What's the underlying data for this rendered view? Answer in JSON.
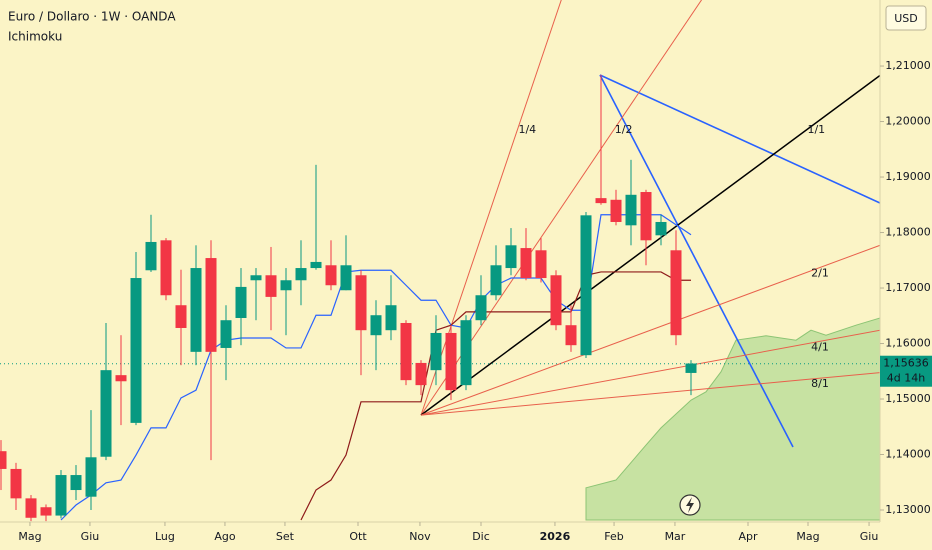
{
  "chart_data": {
    "type": "candlestick",
    "title": "Euro / Dollaro · 1W · OANDA",
    "indicator": "Ichimoku",
    "currency": "USD",
    "colors": {
      "up": "#089981",
      "down": "#f23645",
      "tenkan": "#2962ff",
      "kijun": "#8e1a1a",
      "cloud": "#a5d58a"
    },
    "xlim": [
      -0.067,
      58.6
    ],
    "ylim": [
      1.1282,
      1.2219
    ],
    "xticks": [
      {
        "value": 1.93,
        "label": "Mag"
      },
      {
        "value": 5.93,
        "label": "Giu"
      },
      {
        "value": 10.93,
        "label": "Lug"
      },
      {
        "value": 14.93,
        "label": "Ago"
      },
      {
        "value": 18.93,
        "label": "Set"
      },
      {
        "value": 23.8,
        "label": "Ott"
      },
      {
        "value": 27.93,
        "label": "Nov"
      },
      {
        "value": 32,
        "label": "Dic"
      },
      {
        "value": 36.93,
        "label": "2026"
      },
      {
        "value": 40.87,
        "label": "Feb"
      },
      {
        "value": 44.93,
        "label": "Mar"
      },
      {
        "value": 49.8,
        "label": "Apr"
      },
      {
        "value": 53.8,
        "label": "Mag"
      },
      {
        "value": 57.87,
        "label": "Giu"
      }
    ],
    "yticks": [
      {
        "value": 1.13,
        "label": "1,13000"
      },
      {
        "value": 1.14,
        "label": "1,14000"
      },
      {
        "value": 1.15,
        "label": "1,15000"
      },
      {
        "value": 1.16,
        "label": "1,16000"
      },
      {
        "value": 1.17,
        "label": "1,17000"
      },
      {
        "value": 1.18,
        "label": "1,18000"
      },
      {
        "value": 1.19,
        "label": "1,19000"
      },
      {
        "value": 1.2,
        "label": "1,20000"
      },
      {
        "value": 1.21,
        "label": "1,21000"
      }
    ],
    "open": [
      1.1406,
      1.1374,
      1.1321,
      1.1305,
      1.129,
      1.1336,
      1.1324,
      1.1396,
      1.1543,
      1.1457,
      1.1732,
      1.1786,
      1.1669,
      1.1585,
      1.1754,
      1.1592,
      1.1646,
      1.1714,
      1.1723,
      1.1696,
      1.1714,
      1.1736,
      1.1741,
      1.1696,
      1.1723,
      1.1615,
      1.1624,
      1.1637,
      1.1565,
      1.1552,
      1.1619,
      1.1525,
      1.1642,
      1.1687,
      1.1736,
      1.1772,
      1.1768,
      1.1723,
      1.1633,
      1.1579,
      1.1862,
      1.1859,
      1.1813,
      1.1873,
      1.1795,
      1.1768,
      1.1547
    ],
    "high": [
      1.1426,
      1.1385,
      1.1327,
      1.131,
      1.1372,
      1.1381,
      1.148,
      1.1637,
      1.1615,
      1.1765,
      1.1832,
      1.179,
      1.1733,
      1.1777,
      1.1786,
      1.1669,
      1.1736,
      1.1736,
      1.1774,
      1.1736,
      1.1786,
      1.1922,
      1.1786,
      1.1795,
      1.1732,
      1.1678,
      1.1723,
      1.1642,
      1.157,
      1.1651,
      1.1633,
      1.1651,
      1.1723,
      1.1777,
      1.1808,
      1.1808,
      1.179,
      1.1732,
      1.1669,
      1.1837,
      1.2084,
      1.1877,
      1.1931,
      1.1877,
      1.1832,
      1.1804,
      1.157
    ],
    "low": [
      1.1336,
      1.13,
      1.128,
      1.128,
      1.1285,
      1.1318,
      1.13,
      1.139,
      1.1453,
      1.1453,
      1.1729,
      1.1678,
      1.1561,
      1.1561,
      1.139,
      1.1534,
      1.1597,
      1.1642,
      1.1624,
      1.1615,
      1.1669,
      1.1733,
      1.1696,
      1.1696,
      1.1543,
      1.1552,
      1.1606,
      1.1525,
      1.1507,
      1.1525,
      1.1498,
      1.1516,
      1.1633,
      1.1678,
      1.1723,
      1.1714,
      1.171,
      1.1624,
      1.1585,
      1.1574,
      1.185,
      1.1813,
      1.1777,
      1.1741,
      1.1777,
      1.1597,
      1.1507
    ],
    "close": [
      1.1374,
      1.1321,
      1.1286,
      1.129,
      1.1363,
      1.1363,
      1.1395,
      1.1552,
      1.1532,
      1.1718,
      1.1783,
      1.1687,
      1.1628,
      1.1736,
      1.1585,
      1.1642,
      1.1702,
      1.1723,
      1.1684,
      1.1714,
      1.1736,
      1.1747,
      1.1705,
      1.1741,
      1.1624,
      1.1651,
      1.1669,
      1.1534,
      1.1525,
      1.1619,
      1.1516,
      1.1642,
      1.1687,
      1.1741,
      1.1777,
      1.1718,
      1.1718,
      1.1633,
      1.1597,
      1.1831,
      1.1853,
      1.1819,
      1.1868,
      1.1786,
      1.1819,
      1.1615,
      1.1564
    ],
    "tenkan": [
      null,
      null,
      null,
      null,
      1.1282,
      1.1309,
      1.1327,
      1.1349,
      1.1354,
      1.1399,
      1.1448,
      1.1448,
      1.1502,
      1.1516,
      1.1588,
      1.1606,
      1.161,
      1.161,
      1.161,
      1.1592,
      1.1592,
      1.1651,
      1.1651,
      1.1729,
      1.1732,
      1.1732,
      1.1732,
      1.1705,
      1.1678,
      1.1678,
      1.1633,
      1.1628,
      1.1678,
      1.1705,
      1.1718,
      1.1718,
      1.1718,
      1.1678,
      1.166,
      1.166,
      1.1832,
      1.1832,
      1.1832,
      1.1832,
      1.1832,
      1.1814,
      1.1796
    ],
    "kijun": [
      null,
      null,
      null,
      null,
      null,
      null,
      null,
      null,
      null,
      null,
      null,
      null,
      null,
      null,
      null,
      null,
      null,
      null,
      null,
      null,
      1.1282,
      1.1336,
      1.1354,
      1.1399,
      1.1495,
      1.1495,
      1.1495,
      1.1495,
      1.1495,
      1.1624,
      1.1633,
      1.1657,
      1.1657,
      1.1657,
      1.1657,
      1.1657,
      1.1657,
      1.1657,
      1.1657,
      1.1723,
      1.1729,
      1.1729,
      1.1729,
      1.1729,
      1.1729,
      1.1714,
      1.1714
    ],
    "cloud": {
      "x": [
        39,
        41,
        43,
        44,
        46,
        47,
        48,
        49,
        51,
        53,
        54,
        55,
        57,
        58.6
      ],
      "values": [
        1.134,
        1.1354,
        1.1417,
        1.1448,
        1.1498,
        1.1513,
        1.1549,
        1.1606,
        1.1614,
        1.1606,
        1.1624,
        1.1615,
        1.1633,
        1.1646
      ]
    },
    "gann_fan": {
      "origin_x": 28,
      "origin_value": 1.1471,
      "unit_slope": 0.002,
      "lines": [
        {
          "label": "1/4",
          "color": "#e8604c"
        },
        {
          "label": "1/2",
          "color": "#e8604c"
        },
        {
          "label": "1/1",
          "color": "#000000"
        },
        {
          "label": "2/1",
          "color": "#e8604c"
        },
        {
          "label": "4/1",
          "color": "#e8604c"
        },
        {
          "label": "8/1",
          "color": "#e8604c"
        }
      ]
    },
    "last_price": {
      "value": 1.15636,
      "label": "1,15636",
      "countdown": "4d 14h"
    }
  }
}
